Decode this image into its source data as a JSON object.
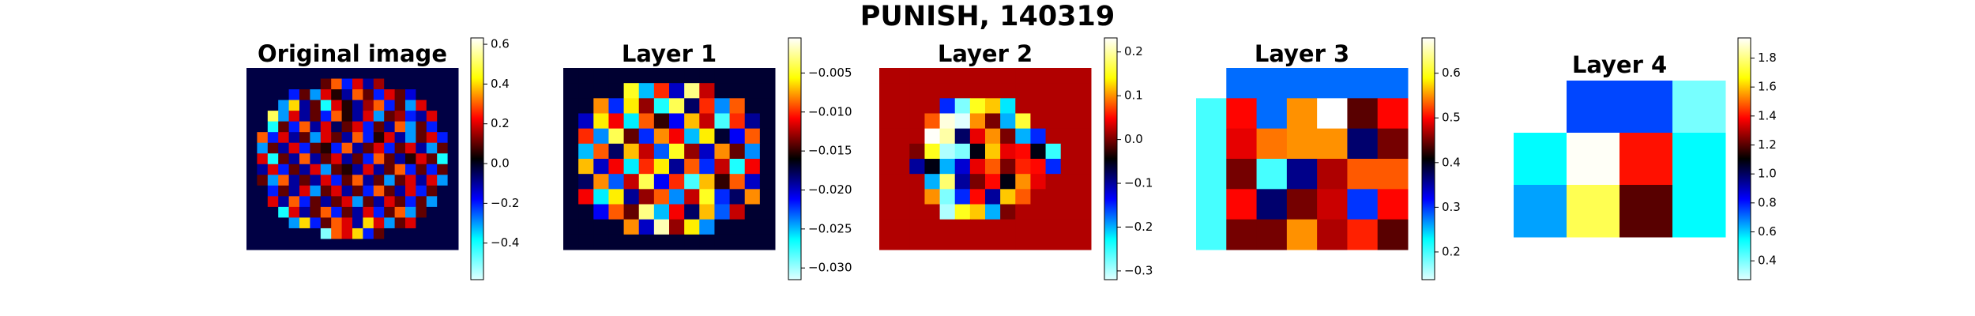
{
  "title": "PUNISH, 140319",
  "chart_data": [
    {
      "type": "heatmap",
      "title": "Original image",
      "colormap": [
        "#e0ffff",
        "#00ffff",
        "#0000ff",
        "#000000",
        "#ff0000",
        "#ffff00",
        "#ffffff"
      ],
      "clim": [
        -0.584,
        0.632
      ],
      "cticks": [
        0.6,
        0.4,
        0.2,
        {
          "value": 0,
          "label": "0.0"
        },
        {
          "value": -0.2,
          "label": "−0.2"
        },
        {
          "value": -0.4,
          "label": "−0.4"
        }
      ],
      "values": [
        [
          -0.03,
          -0.03,
          -0.03,
          -0.03,
          -0.03,
          -0.03,
          -0.03,
          -0.03,
          -0.03,
          -0.03,
          -0.03,
          -0.03,
          -0.03,
          -0.03,
          -0.03,
          -0.03,
          -0.03,
          -0.03,
          -0.03,
          -0.03
        ],
        [
          -0.03,
          -0.03,
          -0.03,
          -0.03,
          -0.03,
          -0.03,
          -0.03,
          0.1,
          0.3,
          -0.2,
          0.2,
          -0.1,
          0.15,
          -0.03,
          -0.03,
          -0.03,
          -0.03,
          -0.03,
          -0.03,
          -0.03
        ],
        [
          -0.03,
          -0.03,
          -0.03,
          -0.03,
          -0.2,
          0.1,
          -0.3,
          0.2,
          0.05,
          -0.1,
          0.3,
          0.1,
          -0.2,
          0.2,
          0.1,
          -0.15,
          -0.03,
          -0.03,
          -0.03,
          -0.03
        ],
        [
          -0.03,
          -0.03,
          -0.03,
          -0.3,
          0.4,
          -0.1,
          0.1,
          -0.4,
          0.2,
          0.05,
          -0.1,
          0.15,
          0.3,
          -0.2,
          0.1,
          -0.3,
          0.2,
          -0.03,
          -0.03,
          -0.03
        ],
        [
          -0.03,
          -0.03,
          0.5,
          -0.3,
          0.2,
          -0.1,
          0.1,
          -0.2,
          0.3,
          0.05,
          -0.1,
          0.2,
          -0.3,
          0.1,
          0.15,
          -0.2,
          -0.1,
          0.2,
          -0.03,
          -0.03
        ],
        [
          -0.03,
          -0.03,
          -0.4,
          0.1,
          -0.2,
          0.3,
          -0.1,
          0.2,
          -0.05,
          0.1,
          0.2,
          -0.2,
          0.1,
          -0.1,
          0.3,
          -0.3,
          0.1,
          -0.2,
          -0.03,
          -0.03
        ],
        [
          -0.03,
          0.3,
          -0.2,
          0.2,
          -0.1,
          0.1,
          -0.3,
          0.2,
          0.1,
          -0.1,
          0.3,
          -0.2,
          0.05,
          0.2,
          -0.1,
          -0.3,
          0.1,
          0.2,
          -0.2,
          -0.03
        ],
        [
          -0.03,
          -0.3,
          0.1,
          -0.1,
          0.2,
          -0.2,
          0.1,
          0.05,
          -0.2,
          0.3,
          -0.1,
          0.1,
          0.2,
          -0.2,
          0.1,
          0.2,
          -0.1,
          -0.3,
          0.1,
          -0.03
        ],
        [
          -0.03,
          0.2,
          -0.4,
          0.1,
          -0.1,
          0.3,
          -0.1,
          0.1,
          0.2,
          -0.1,
          0.1,
          -0.2,
          0.3,
          0.1,
          -0.1,
          0.05,
          0.2,
          0.1,
          -0.4,
          -0.03
        ],
        [
          -0.03,
          -0.1,
          0.2,
          -0.2,
          0.1,
          -0.1,
          0.2,
          -0.3,
          0.1,
          0.05,
          -0.1,
          0.2,
          -0.1,
          0.1,
          0.3,
          -0.2,
          0.1,
          -0.2,
          0.1,
          -0.03
        ],
        [
          -0.03,
          0.1,
          -0.3,
          0.3,
          -0.1,
          0.1,
          -0.1,
          0.2,
          -0.2,
          0.1,
          0.3,
          -0.1,
          0.1,
          -0.3,
          0.1,
          0.2,
          -0.1,
          0.2,
          -0.3,
          -0.03
        ],
        [
          -0.03,
          -0.03,
          -0.2,
          0.1,
          -0.1,
          0.2,
          -0.3,
          0.1,
          0.2,
          -0.1,
          0.1,
          -0.2,
          0.3,
          0.1,
          -0.1,
          0.2,
          -0.2,
          0.1,
          -0.03,
          -0.03
        ],
        [
          -0.03,
          -0.03,
          0.2,
          -0.1,
          0.3,
          -0.2,
          0.1,
          -0.1,
          0.1,
          0.2,
          -0.3,
          0.1,
          -0.1,
          0.2,
          0.1,
          -0.2,
          0.1,
          -0.3,
          -0.03,
          -0.03
        ],
        [
          -0.03,
          -0.03,
          -0.03,
          -0.4,
          0.2,
          -0.1,
          0.1,
          0.3,
          -0.2,
          0.1,
          -0.1,
          0.2,
          -0.2,
          0.1,
          0.3,
          -0.3,
          0.1,
          -0.03,
          -0.03,
          -0.03
        ],
        [
          -0.03,
          -0.03,
          -0.03,
          -0.03,
          -0.3,
          0.4,
          -0.2,
          0.1,
          0.3,
          0.2,
          -0.1,
          0.4,
          0.2,
          -0.3,
          0.1,
          0.2,
          -0.03,
          -0.03,
          -0.03,
          -0.03
        ],
        [
          -0.03,
          -0.03,
          -0.03,
          -0.03,
          -0.03,
          -0.03,
          -0.03,
          -0.5,
          0.3,
          0.2,
          0.4,
          -0.2,
          0.1,
          -0.03,
          -0.03,
          -0.03,
          -0.03,
          -0.03,
          -0.03,
          -0.03
        ],
        [
          -0.03,
          -0.03,
          -0.03,
          -0.03,
          -0.03,
          -0.03,
          -0.03,
          -0.03,
          -0.03,
          -0.03,
          -0.03,
          -0.03,
          -0.03,
          -0.03,
          -0.03,
          -0.03,
          -0.03,
          -0.03,
          -0.03,
          -0.03
        ]
      ]
    },
    {
      "type": "heatmap",
      "title": "Layer 1",
      "colormap": [
        "#e0ffff",
        "#00ffff",
        "#0000ff",
        "#000000",
        "#ff0000",
        "#ffff00",
        "#ffffff"
      ],
      "clim": [
        -0.0315,
        -0.0005
      ],
      "cticks": [
        {
          "value": -0.005,
          "label": "−0.005"
        },
        {
          "value": -0.01,
          "label": "−0.010"
        },
        {
          "value": -0.015,
          "label": "−0.015"
        },
        {
          "value": -0.02,
          "label": "−0.020"
        },
        {
          "value": -0.025,
          "label": "−0.025"
        },
        {
          "value": -0.03,
          "label": "−0.030"
        }
      ],
      "values": [
        [
          -0.017,
          -0.017,
          -0.017,
          -0.017,
          -0.017,
          -0.017,
          -0.017,
          -0.017,
          -0.017,
          -0.017,
          -0.017,
          -0.017,
          -0.017,
          -0.017
        ],
        [
          -0.017,
          -0.017,
          -0.017,
          -0.017,
          -0.005,
          -0.025,
          -0.01,
          -0.02,
          -0.003,
          -0.012,
          -0.017,
          -0.017,
          -0.017,
          -0.017
        ],
        [
          -0.017,
          -0.017,
          -0.008,
          -0.022,
          -0.006,
          -0.013,
          -0.027,
          -0.004,
          -0.018,
          -0.01,
          -0.024,
          -0.009,
          -0.017,
          -0.017
        ],
        [
          -0.017,
          -0.02,
          -0.006,
          -0.011,
          -0.026,
          -0.009,
          -0.015,
          -0.021,
          -0.007,
          -0.012,
          -0.028,
          -0.01,
          -0.019,
          -0.017
        ],
        [
          -0.017,
          -0.01,
          -0.024,
          -0.004,
          -0.014,
          -0.022,
          -0.008,
          -0.011,
          -0.025,
          -0.006,
          -0.017,
          -0.021,
          -0.009,
          -0.017
        ],
        [
          -0.017,
          -0.025,
          -0.009,
          -0.018,
          -0.007,
          -0.012,
          -0.023,
          -0.005,
          -0.013,
          -0.02,
          -0.008,
          -0.014,
          -0.024,
          -0.017
        ],
        [
          -0.017,
          -0.007,
          -0.02,
          -0.011,
          -0.026,
          -0.01,
          -0.006,
          -0.019,
          -0.009,
          -0.022,
          -0.012,
          -0.027,
          -0.011,
          -0.017
        ],
        [
          -0.017,
          -0.018,
          -0.008,
          -0.023,
          -0.012,
          -0.004,
          -0.021,
          -0.01,
          -0.028,
          -0.007,
          -0.015,
          -0.009,
          -0.02,
          -0.017
        ],
        [
          -0.017,
          -0.011,
          -0.026,
          -0.006,
          -0.019,
          -0.013,
          -0.009,
          -0.024,
          -0.012,
          -0.005,
          -0.022,
          -0.018,
          -0.008,
          -0.017
        ],
        [
          -0.017,
          -0.017,
          -0.021,
          -0.009,
          -0.014,
          -0.003,
          -0.025,
          -0.011,
          -0.018,
          -0.007,
          -0.023,
          -0.012,
          -0.017,
          -0.017
        ],
        [
          -0.017,
          -0.017,
          -0.017,
          -0.017,
          -0.008,
          -0.02,
          -0.002,
          -0.013,
          -0.006,
          -0.024,
          -0.017,
          -0.017,
          -0.017,
          -0.017
        ],
        [
          -0.017,
          -0.017,
          -0.017,
          -0.017,
          -0.017,
          -0.017,
          -0.017,
          -0.017,
          -0.017,
          -0.017,
          -0.017,
          -0.017,
          -0.017,
          -0.017
        ]
      ]
    },
    {
      "type": "heatmap",
      "title": "Layer 2",
      "colormap": [
        "#e0ffff",
        "#00ffff",
        "#0000ff",
        "#000000",
        "#ff0000",
        "#ffff00",
        "#ffffff"
      ],
      "clim": [
        -0.32,
        0.232
      ],
      "cticks": [
        0.2,
        0.1,
        {
          "value": 0,
          "label": "0.0"
        },
        {
          "value": -0.1,
          "label": "−0.1"
        },
        {
          "value": -0.2,
          "label": "−0.2"
        },
        {
          "value": -0.3,
          "label": "−0.3"
        }
      ],
      "values": [
        [
          0.02,
          0.02,
          0.02,
          0.02,
          0.02,
          0.02,
          0.02,
          0.02,
          0.02,
          0.02,
          0.02,
          0.02,
          0.02,
          0.02
        ],
        [
          0.02,
          0.02,
          0.02,
          0.02,
          0.02,
          0.02,
          0.02,
          0.02,
          0.02,
          0.02,
          0.02,
          0.02,
          0.02,
          0.02
        ],
        [
          0.02,
          0.02,
          0.02,
          0.02,
          -0.15,
          -0.28,
          0.15,
          0.12,
          -0.22,
          0.02,
          0.02,
          0.02,
          0.02,
          0.02
        ],
        [
          0.02,
          0.02,
          0.02,
          0.08,
          0.22,
          -0.33,
          0.1,
          0.0,
          -0.2,
          0.16,
          0.02,
          0.02,
          0.02,
          0.02
        ],
        [
          0.02,
          0.02,
          0.02,
          0.23,
          0.2,
          -0.08,
          0.04,
          0.1,
          0.0,
          -0.2,
          -0.15,
          0.02,
          0.02,
          0.02
        ],
        [
          0.02,
          0.02,
          0.0,
          0.15,
          -0.3,
          -0.28,
          -0.05,
          0.12,
          0.04,
          0.05,
          -0.05,
          -0.25,
          0.02,
          0.02
        ],
        [
          0.02,
          0.02,
          -0.1,
          -0.05,
          -0.2,
          -0.12,
          0.04,
          0.08,
          0.0,
          0.06,
          0.05,
          -0.15,
          0.02,
          0.02
        ],
        [
          0.02,
          0.02,
          0.02,
          -0.2,
          0.18,
          -0.1,
          0.0,
          0.05,
          -0.05,
          0.1,
          0.04,
          0.02,
          0.02,
          0.02
        ],
        [
          0.02,
          0.02,
          0.02,
          0.1,
          -0.28,
          -0.15,
          0.05,
          -0.1,
          0.12,
          0.08,
          0.02,
          0.02,
          0.02,
          0.02
        ],
        [
          0.02,
          0.02,
          0.02,
          0.02,
          -0.3,
          0.15,
          0.12,
          -0.2,
          0.0,
          0.02,
          0.02,
          0.02,
          0.02,
          0.02
        ],
        [
          0.02,
          0.02,
          0.02,
          0.02,
          0.02,
          0.02,
          0.02,
          0.02,
          0.02,
          0.02,
          0.02,
          0.02,
          0.02,
          0.02
        ],
        [
          0.02,
          0.02,
          0.02,
          0.02,
          0.02,
          0.02,
          0.02,
          0.02,
          0.02,
          0.02,
          0.02,
          0.02,
          0.02,
          0.02
        ]
      ]
    },
    {
      "type": "heatmap",
      "title": "Layer 3",
      "colormap": [
        "#e0ffff",
        "#00ffff",
        "#0000ff",
        "#000000",
        "#ff0000",
        "#ffff00",
        "#ffffff"
      ],
      "clim": [
        0.138,
        0.679
      ],
      "cticks": [
        0.6,
        0.5,
        0.4,
        0.3,
        0.2
      ],
      "values": [
        [
          null,
          0.28,
          0.28,
          0.28,
          0.28,
          0.28,
          0.28
        ],
        [
          0.2,
          0.5,
          0.28,
          0.55,
          0.68,
          0.44,
          0.5
        ],
        [
          0.2,
          0.49,
          0.54,
          0.55,
          0.55,
          0.37,
          0.45
        ],
        [
          0.2,
          0.45,
          0.2,
          0.36,
          0.47,
          0.53,
          0.53
        ],
        [
          0.2,
          0.5,
          0.37,
          0.45,
          0.48,
          0.3,
          0.5
        ],
        [
          0.2,
          0.45,
          0.45,
          0.55,
          0.47,
          0.51,
          0.44
        ]
      ]
    },
    {
      "type": "heatmap",
      "title": "Layer 4",
      "colormap": [
        "#e0ffff",
        "#00ffff",
        "#0000ff",
        "#000000",
        "#ff0000",
        "#ffff00",
        "#ffffff"
      ],
      "clim": [
        0.27,
        1.939
      ],
      "cticks": [
        1.8,
        1.6,
        1.4,
        1.2,
        {
          "value": 1,
          "label": "1.0"
        },
        0.8,
        0.6,
        0.4
      ],
      "values": [
        [
          null,
          0.75,
          0.75,
          0.4
        ],
        [
          0.55,
          1.93,
          1.4,
          0.55
        ],
        [
          0.65,
          1.75,
          1.2,
          0.55
        ]
      ]
    }
  ]
}
